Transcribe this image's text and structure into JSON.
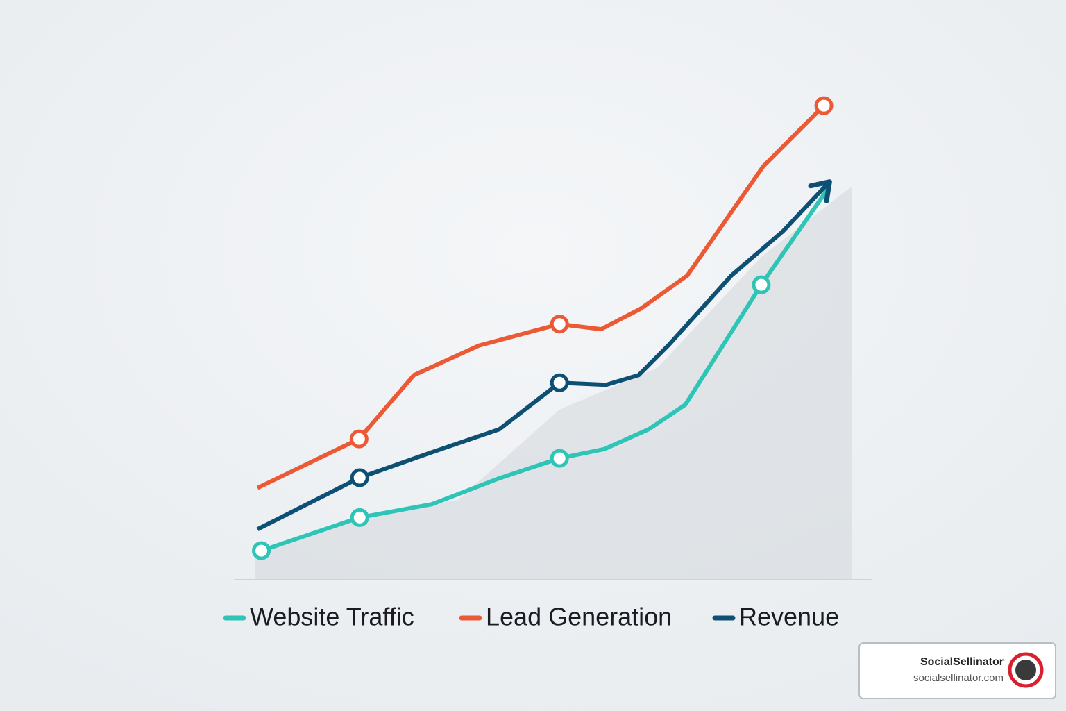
{
  "chart_data": {
    "type": "line",
    "xlim": [
      0,
      100
    ],
    "ylim": [
      0,
      100
    ],
    "series": [
      {
        "name": "Website Traffic",
        "color": "#2ec4b6",
        "x": [
          4.3,
          19.7,
          31.0,
          41.6,
          51.0,
          58.0,
          65.0,
          70.7,
          82.6,
          93.3
        ],
        "values": [
          5.7,
          12.2,
          14.8,
          19.9,
          23.8,
          25.6,
          29.5,
          34.3,
          57.8,
          77.1
        ],
        "marker_indices": [
          0,
          1,
          4,
          8
        ]
      },
      {
        "name": "Lead Generation",
        "color": "#ec5a35",
        "x": [
          3.7,
          19.6,
          28.2,
          38.4,
          51.0,
          57.5,
          63.7,
          71.0,
          82.9,
          92.4
        ],
        "values": [
          18.0,
          27.6,
          40.1,
          45.9,
          50.1,
          49.1,
          53.1,
          59.6,
          81.0,
          92.9
        ],
        "marker_indices": [
          1,
          4,
          9
        ]
      },
      {
        "name": "Revenue",
        "color": "#0e4f74",
        "x": [
          3.7,
          19.7,
          30.8,
          41.6,
          51.0,
          58.3,
          63.4,
          68.1,
          77.9,
          86.0,
          93.3
        ],
        "values": [
          9.9,
          20.0,
          24.9,
          29.5,
          38.6,
          38.2,
          40.1,
          46.0,
          59.6,
          68.3,
          78.0
        ],
        "marker_indices": [
          1,
          4
        ],
        "arrow": true
      }
    ]
  },
  "watermark": {
    "name": "SocialSellinator",
    "url": "socialsellinator.com"
  }
}
